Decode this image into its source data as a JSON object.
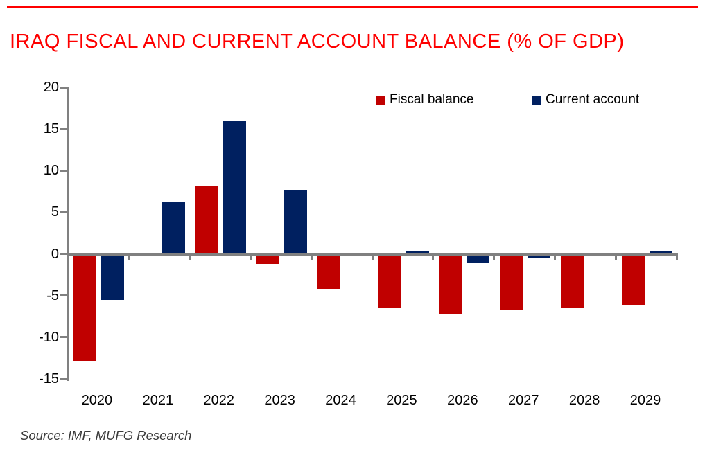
{
  "page": {
    "title": "IRAQ FISCAL AND CURRENT ACCOUNT BALANCE (% OF GDP)",
    "source": "Source: IMF, MUFG Research"
  },
  "colors": {
    "accent_red": "#fe0000",
    "fiscal_bar": "#c00000",
    "current_bar": "#002060",
    "axis_gray": "#808080",
    "text_black": "#000000",
    "source_gray": "#3a3a3a"
  },
  "chart_data": {
    "type": "bar",
    "title": "IRAQ FISCAL AND CURRENT ACCOUNT BALANCE (% OF GDP)",
    "categories": [
      "2020",
      "2021",
      "2022",
      "2023",
      "2024",
      "2025",
      "2026",
      "2027",
      "2028",
      "2029"
    ],
    "series": [
      {
        "name": "Fiscal balance",
        "color": "#c00000",
        "values": [
          -12.8,
          -0.3,
          8.2,
          -1.2,
          -4.2,
          -6.4,
          -7.2,
          -6.8,
          -6.4,
          -6.2
        ]
      },
      {
        "name": "Current account",
        "color": "#002060",
        "values": [
          -5.5,
          6.2,
          15.9,
          7.6,
          -0.2,
          0.4,
          -1.1,
          -0.5,
          0.0,
          0.3
        ]
      }
    ],
    "xlabel": "",
    "ylabel": "",
    "ylim": [
      -15,
      20
    ],
    "yticks": [
      20,
      15,
      10,
      5,
      0,
      -5,
      -10,
      -15
    ],
    "grid": false,
    "legend_position": "top-inside"
  }
}
